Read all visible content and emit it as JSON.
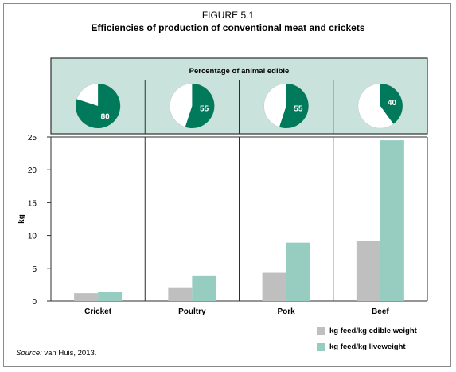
{
  "figure": {
    "label": "FIGURE 5.1",
    "title": "Efficiencies of production of conventional meat and crickets"
  },
  "source": {
    "prefix": "Source:",
    "text": "van Huis, 2013."
  },
  "colors": {
    "edible_bar": "#bfbfbf",
    "liveweight_bar": "#97cdc0",
    "pie_fill": "#007a5a",
    "pie_panel_bg": "#c9e3dc",
    "pie_panel_border": "#2e2e2e"
  },
  "chart_data": [
    {
      "type": "pie",
      "title": "Percentage of animal edible",
      "categories": [
        "Cricket",
        "Poultry",
        "Pork",
        "Beef"
      ],
      "values": [
        80,
        55,
        55,
        40
      ],
      "labels": [
        "80",
        "55",
        "55",
        "40"
      ]
    },
    {
      "type": "bar",
      "categories": [
        "Cricket",
        "Poultry",
        "Pork",
        "Beef"
      ],
      "series": [
        {
          "name": "kg feed/kg edible weight",
          "values": [
            1.2,
            2.1,
            4.3,
            9.2
          ]
        },
        {
          "name": "kg feed/kg liveweight",
          "values": [
            1.4,
            3.9,
            8.9,
            24.5
          ]
        }
      ],
      "ylabel": "kg",
      "ylim": [
        0,
        25
      ],
      "yticks": [
        0,
        5,
        10,
        15,
        20,
        25
      ],
      "legend_position": "bottom-right",
      "grid": "vertical separators"
    }
  ]
}
